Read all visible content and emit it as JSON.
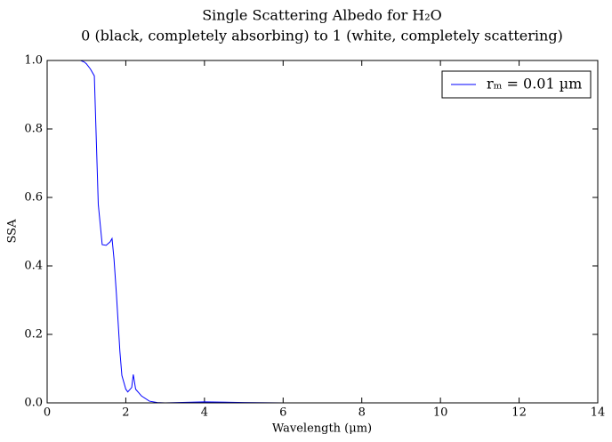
{
  "chart_data": {
    "type": "line",
    "title": "Single Scattering Albedo for H₂O",
    "subtitle": "0 (black, completely absorbing) to 1 (white, completely scattering)",
    "x_label": "Wavelength (μm)",
    "y_label": "SSA",
    "x": [
      0.85,
      0.95,
      1.0,
      1.1,
      1.2,
      1.3,
      1.4,
      1.5,
      1.6,
      1.65,
      1.7,
      1.76,
      1.85,
      1.9,
      2.0,
      2.05,
      2.15,
      2.19,
      2.25,
      2.4,
      2.6,
      2.8,
      3.0,
      4.0,
      5.0,
      6.0,
      8.0,
      10.0,
      13.0
    ],
    "series": [
      {
        "name": "rₘ = 0.01 µm",
        "color": "#0000ff",
        "values": [
          1.0,
          0.995,
          0.99,
          0.975,
          0.955,
          0.58,
          0.462,
          0.46,
          0.47,
          0.48,
          0.42,
          0.32,
          0.15,
          0.08,
          0.04,
          0.032,
          0.045,
          0.083,
          0.04,
          0.02,
          0.005,
          0.001,
          0.0,
          0.003,
          0.001,
          0.0,
          0.0,
          0.0,
          0.0
        ]
      }
    ],
    "xlim": [
      0,
      14
    ],
    "xticks": [
      0,
      2,
      4,
      6,
      8,
      10,
      12,
      14
    ],
    "ylim": [
      0,
      1
    ],
    "yticks": [
      {
        "value": 0,
        "label": "0.0"
      },
      {
        "value": 0.2,
        "label": "0.2"
      },
      {
        "value": 0.4,
        "label": "0.4"
      },
      {
        "value": 0.6,
        "label": "0.6"
      },
      {
        "value": 0.8,
        "label": "0.8"
      },
      {
        "value": 1,
        "label": "1.0"
      }
    ],
    "legend": "upper right"
  }
}
